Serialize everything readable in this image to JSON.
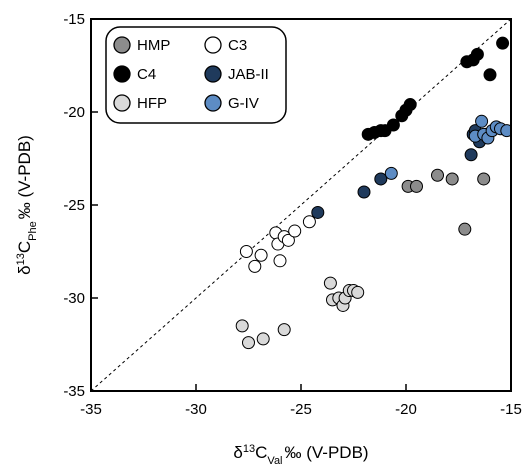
{
  "chart_data": {
    "type": "scatter",
    "title": "",
    "xlim": [
      -35,
      -15
    ],
    "ylim": [
      -35,
      -15
    ],
    "x_ticks": [
      -35,
      -30,
      -25,
      -20,
      -15
    ],
    "y_ticks": [
      -35,
      -30,
      -25,
      -20,
      -15
    ],
    "grid": false,
    "reference_line": "1:1",
    "legend_position": "top-left",
    "xlabel": {
      "delta": "δ",
      "mass": "13",
      "element": "C",
      "subscript": "Val",
      "rest": "‰ (V-PDB)"
    },
    "ylabel": {
      "delta": "δ",
      "mass": "13",
      "element": "C",
      "subscript": "Phe",
      "rest": "‰ (V-PDB)"
    },
    "series": [
      {
        "name": "HMP",
        "color": "#8c8c8c",
        "points": [
          [
            -19.9,
            -24.0
          ],
          [
            -19.5,
            -24.0
          ],
          [
            -18.5,
            -23.4
          ],
          [
            -17.8,
            -23.6
          ],
          [
            -16.3,
            -23.6
          ],
          [
            -17.2,
            -26.3
          ]
        ]
      },
      {
        "name": "C3",
        "color": "#ffffff",
        "points": [
          [
            -27.6,
            -27.5
          ],
          [
            -27.2,
            -28.3
          ],
          [
            -26.9,
            -27.7
          ],
          [
            -26.2,
            -26.5
          ],
          [
            -26.1,
            -27.1
          ],
          [
            -26.0,
            -28.0
          ],
          [
            -25.8,
            -26.7
          ],
          [
            -25.6,
            -26.9
          ],
          [
            -25.3,
            -26.4
          ],
          [
            -24.6,
            -25.9
          ]
        ]
      },
      {
        "name": "C4",
        "color": "#000000",
        "points": [
          [
            -21.8,
            -21.2
          ],
          [
            -21.5,
            -21.1
          ],
          [
            -21.2,
            -21.0
          ],
          [
            -21.0,
            -21.0
          ],
          [
            -20.6,
            -20.7
          ],
          [
            -20.2,
            -20.2
          ],
          [
            -20.0,
            -19.9
          ],
          [
            -19.8,
            -19.6
          ],
          [
            -17.1,
            -17.3
          ],
          [
            -16.8,
            -17.2
          ],
          [
            -16.6,
            -16.9
          ],
          [
            -16.0,
            -18.0
          ],
          [
            -15.4,
            -16.3
          ]
        ]
      },
      {
        "name": "JAB-II",
        "color": "#1f3a5c",
        "points": [
          [
            -24.2,
            -25.4
          ],
          [
            -22.0,
            -24.3
          ],
          [
            -21.2,
            -23.6
          ],
          [
            -16.9,
            -22.3
          ],
          [
            -16.8,
            -21.2
          ],
          [
            -16.7,
            -21.0
          ],
          [
            -16.5,
            -21.6
          ],
          [
            -16.2,
            -21.2
          ]
        ]
      },
      {
        "name": "HFP",
        "color": "#d9d9d9",
        "points": [
          [
            -27.8,
            -31.5
          ],
          [
            -27.5,
            -32.4
          ],
          [
            -26.8,
            -32.2
          ],
          [
            -25.8,
            -31.7
          ],
          [
            -23.6,
            -29.2
          ],
          [
            -23.5,
            -30.1
          ],
          [
            -23.2,
            -30.0
          ],
          [
            -23.0,
            -30.4
          ],
          [
            -22.9,
            -30.0
          ],
          [
            -22.7,
            -29.6
          ],
          [
            -22.5,
            -29.6
          ],
          [
            -22.3,
            -29.7
          ]
        ]
      },
      {
        "name": "G-IV",
        "color": "#5d8cc4",
        "points": [
          [
            -20.7,
            -23.3
          ],
          [
            -16.7,
            -21.3
          ],
          [
            -16.4,
            -20.5
          ],
          [
            -16.3,
            -21.2
          ],
          [
            -16.1,
            -21.4
          ],
          [
            -15.9,
            -21.0
          ],
          [
            -15.7,
            -20.8
          ],
          [
            -15.5,
            -20.9
          ],
          [
            -15.2,
            -21.0
          ]
        ]
      }
    ]
  }
}
